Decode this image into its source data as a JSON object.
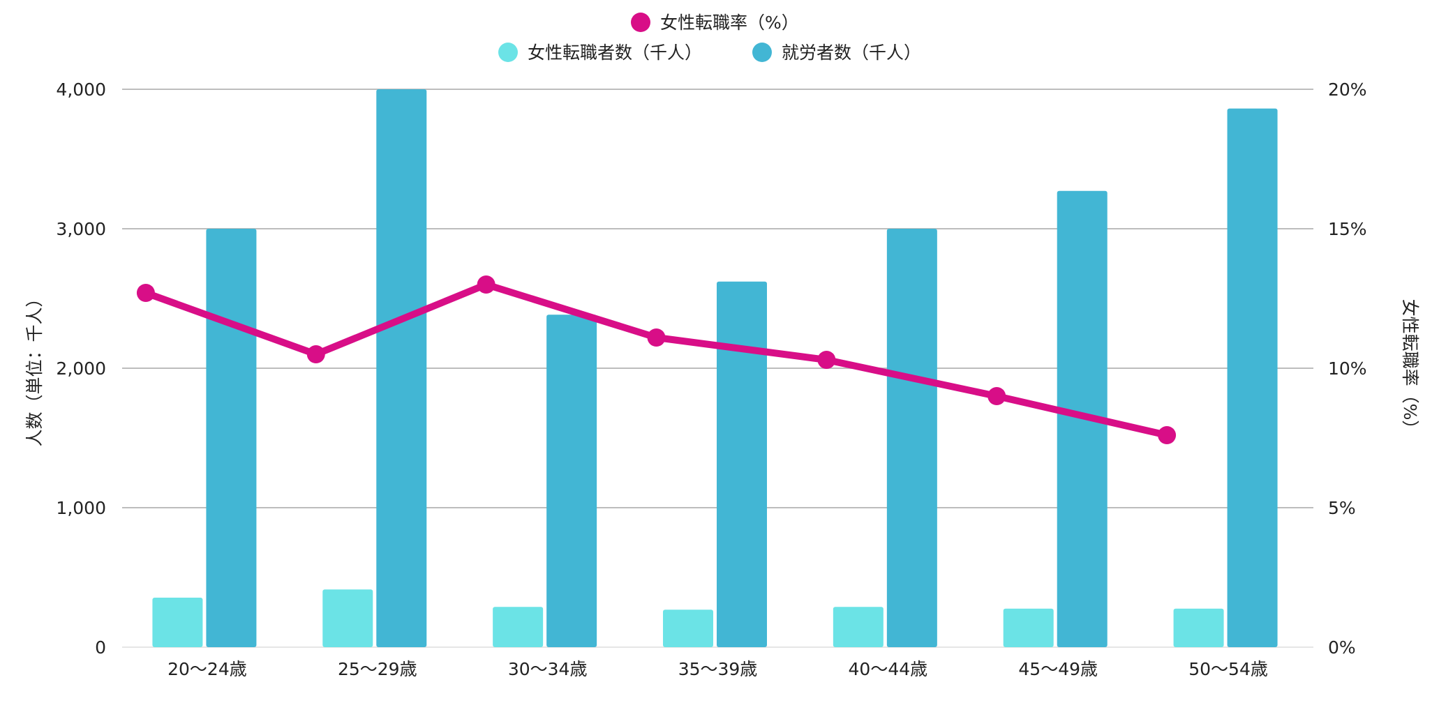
{
  "chart_data": {
    "type": "bar+line",
    "categories": [
      "20〜24歳",
      "25〜29歳",
      "30〜34歳",
      "35〜39歳",
      "40〜44歳",
      "45〜49歳",
      "50〜54歳"
    ],
    "series": [
      {
        "name": "女性転職者数（千人）",
        "type": "bar",
        "axis": "left",
        "color": "#6BE3E6",
        "values": [
          355,
          414,
          289,
          269,
          289,
          276,
          276
        ]
      },
      {
        "name": "就労者数（千人）",
        "type": "bar",
        "axis": "left",
        "color": "#42B6D4",
        "values": [
          3000,
          4000,
          2384,
          2621,
          3000,
          3271,
          3862
        ]
      },
      {
        "name": "女性転職率（%）",
        "type": "line",
        "axis": "right",
        "color": "#D80E87",
        "values": [
          12.7,
          10.5,
          13.0,
          11.1,
          10.3,
          9.0,
          7.6
        ]
      }
    ],
    "ylabel": "人数（単位：千人）",
    "y2label": "女性転職率（%）",
    "ylim": [
      0,
      4000
    ],
    "y2lim": [
      0,
      20
    ],
    "yticks": [
      "0",
      "1,000",
      "2,000",
      "3,000",
      "4,000"
    ],
    "y2ticks": [
      "0%",
      "5%",
      "10%",
      "15%",
      "20%"
    ],
    "grid": true,
    "legend_position": "top"
  }
}
